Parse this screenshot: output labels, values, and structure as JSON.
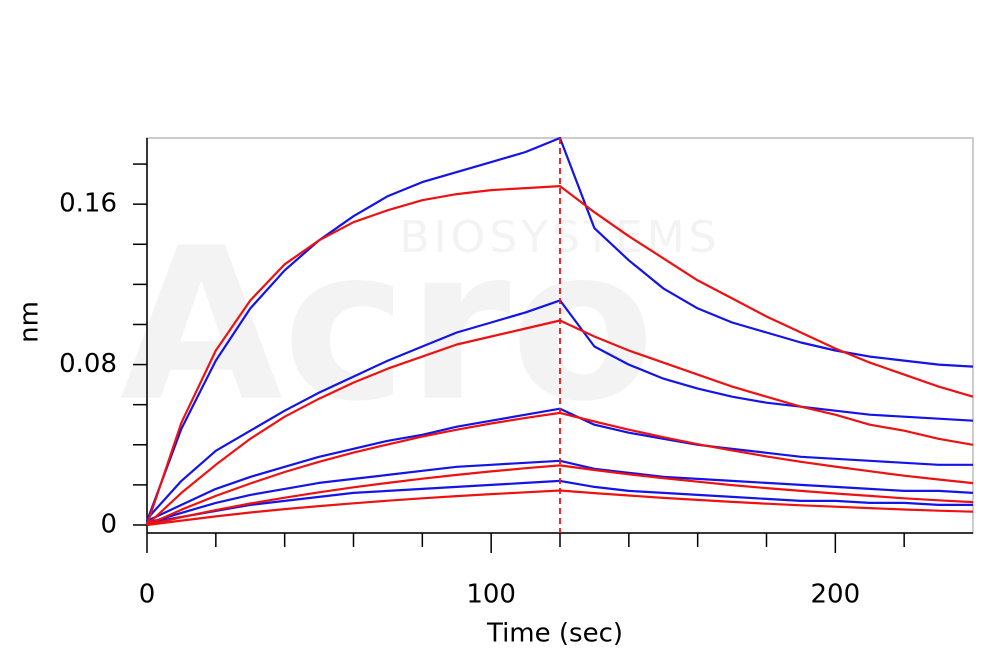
{
  "chart_data": {
    "type": "line",
    "xlabel": "Time (sec)",
    "ylabel": "nm",
    "watermark": [
      "Acro",
      "BIOSYSTEMS"
    ],
    "x": [
      0,
      10,
      20,
      30,
      40,
      50,
      60,
      70,
      80,
      90,
      100,
      110,
      120,
      130,
      140,
      150,
      160,
      170,
      180,
      190,
      200,
      210,
      220,
      230,
      240
    ],
    "series": [
      {
        "color": "#1414e6",
        "values": [
          0.002,
          0.048,
          0.082,
          0.108,
          0.127,
          0.142,
          0.154,
          0.164,
          0.171,
          0.176,
          0.181,
          0.186,
          0.193,
          0.148,
          0.132,
          0.118,
          0.108,
          0.101,
          0.096,
          0.091,
          0.087,
          0.084,
          0.082,
          0.08,
          0.079
        ]
      },
      {
        "color": "#1414e6",
        "values": [
          0.003,
          0.022,
          0.037,
          0.047,
          0.057,
          0.066,
          0.074,
          0.082,
          0.089,
          0.096,
          0.101,
          0.106,
          0.112,
          0.089,
          0.08,
          0.073,
          0.068,
          0.064,
          0.061,
          0.059,
          0.057,
          0.055,
          0.054,
          0.053,
          0.052
        ]
      },
      {
        "color": "#1414e6",
        "values": [
          0.002,
          0.01,
          0.018,
          0.024,
          0.029,
          0.034,
          0.038,
          0.042,
          0.045,
          0.049,
          0.052,
          0.055,
          0.058,
          0.05,
          0.046,
          0.043,
          0.04,
          0.038,
          0.036,
          0.034,
          0.033,
          0.032,
          0.031,
          0.03,
          0.03
        ]
      },
      {
        "color": "#1414e6",
        "values": [
          0.001,
          0.006,
          0.011,
          0.015,
          0.018,
          0.021,
          0.023,
          0.025,
          0.027,
          0.029,
          0.03,
          0.031,
          0.032,
          0.028,
          0.026,
          0.024,
          0.023,
          0.022,
          0.021,
          0.02,
          0.019,
          0.018,
          0.017,
          0.017,
          0.016
        ]
      },
      {
        "color": "#1414e6",
        "values": [
          0.001,
          0.004,
          0.007,
          0.01,
          0.012,
          0.014,
          0.016,
          0.017,
          0.018,
          0.019,
          0.02,
          0.021,
          0.022,
          0.019,
          0.017,
          0.016,
          0.015,
          0.014,
          0.013,
          0.012,
          0.012,
          0.011,
          0.011,
          0.01,
          0.01
        ]
      },
      {
        "color": "#ee1111",
        "values": [
          0,
          0.051,
          0.087,
          0.112,
          0.13,
          0.142,
          0.151,
          0.157,
          0.162,
          0.165,
          0.167,
          0.168,
          0.169,
          0.156,
          0.144,
          0.133,
          0.122,
          0.113,
          0.104,
          0.096,
          0.088,
          0.081,
          0.075,
          0.069,
          0.064
        ]
      },
      {
        "color": "#ee1111",
        "values": [
          0,
          0.016,
          0.03,
          0.043,
          0.054,
          0.063,
          0.071,
          0.078,
          0.084,
          0.09,
          0.094,
          0.098,
          0.102,
          0.094,
          0.087,
          0.081,
          0.075,
          0.069,
          0.064,
          0.059,
          0.055,
          0.05,
          0.047,
          0.043,
          0.04
        ]
      },
      {
        "color": "#ee1111",
        "values": [
          0,
          0.0076,
          0.0145,
          0.0207,
          0.0264,
          0.0315,
          0.0361,
          0.0402,
          0.0441,
          0.0475,
          0.0506,
          0.0534,
          0.0559,
          0.0516,
          0.0475,
          0.0438,
          0.0403,
          0.0372,
          0.0342,
          0.0315,
          0.0291,
          0.0268,
          0.0246,
          0.0227,
          0.0209
        ]
      },
      {
        "color": "#ee1111",
        "values": [
          0,
          0.0039,
          0.0074,
          0.0107,
          0.0136,
          0.0163,
          0.0188,
          0.021,
          0.0231,
          0.025,
          0.0267,
          0.0283,
          0.0297,
          0.0274,
          0.0253,
          0.0234,
          0.0216,
          0.0199,
          0.0184,
          0.017,
          0.0157,
          0.0145,
          0.0133,
          0.0123,
          0.0114
        ]
      },
      {
        "color": "#ee1111",
        "values": [
          0,
          0.0022,
          0.0043,
          0.0062,
          0.0079,
          0.0094,
          0.0108,
          0.0121,
          0.0133,
          0.0144,
          0.0154,
          0.0163,
          0.0172,
          0.0159,
          0.0147,
          0.0135,
          0.0125,
          0.0115,
          0.0106,
          0.0098,
          0.0091,
          0.0084,
          0.0077,
          0.0071,
          0.0066
        ]
      }
    ],
    "xlim": [
      0,
      240
    ],
    "ylim": [
      -0.004,
      0.193
    ],
    "xticks": [
      0,
      100,
      200
    ],
    "yticks": [
      0,
      0.08,
      0.16
    ],
    "xminorticks": [
      20,
      40,
      60,
      80,
      120,
      140,
      160,
      180,
      220
    ],
    "yminorticks": [
      0.02,
      0.04,
      0.06,
      0.1,
      0.12,
      0.14,
      0.18
    ],
    "vline": {
      "x": 120,
      "color": "#ee1111",
      "dashed": true
    },
    "grid": false
  }
}
